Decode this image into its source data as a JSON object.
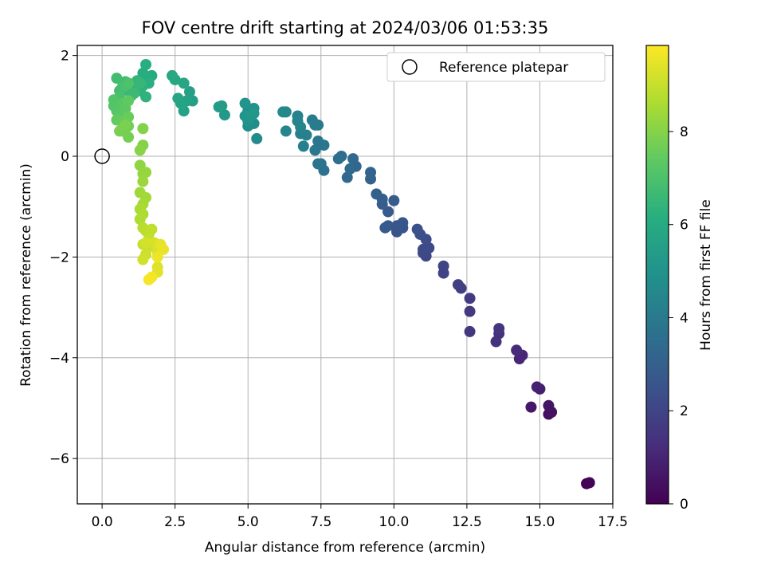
{
  "chart_data": {
    "type": "scatter",
    "title": "FOV centre drift starting at 2024/03/06 01:53:35",
    "xlabel": "Angular distance from reference (arcmin)",
    "ylabel": "Rotation from reference (arcmin)",
    "xlim": [
      -0.85,
      17.5
    ],
    "ylim": [
      -6.9,
      2.2
    ],
    "xticks": [
      "0.0",
      "2.5",
      "5.0",
      "7.5",
      "10.0",
      "12.5",
      "15.0",
      "17.5"
    ],
    "yticks": [
      "−6",
      "−4",
      "−2",
      "0",
      "2"
    ],
    "grid": true,
    "legend": {
      "position": "top-right",
      "entries": [
        "Reference platepar"
      ]
    },
    "reference_point": {
      "x": 0.0,
      "y": 0.0
    },
    "colorbar": {
      "label": "Hours from first FF file",
      "range": [
        0,
        9.85
      ],
      "ticks": [
        "0",
        "2",
        "4",
        "6",
        "8"
      ],
      "colormap": "viridis"
    },
    "series": [
      {
        "points": [
          [
            16.6,
            -6.5,
            0.05
          ],
          [
            16.7,
            -6.48,
            0.1
          ],
          [
            15.3,
            -5.12,
            0.35
          ],
          [
            15.4,
            -5.08,
            0.45
          ],
          [
            15.3,
            -4.95,
            0.55
          ],
          [
            14.7,
            -4.98,
            0.65
          ],
          [
            15.0,
            -4.62,
            0.8
          ],
          [
            14.9,
            -4.58,
            0.9
          ],
          [
            14.3,
            -4.02,
            1.05
          ],
          [
            14.4,
            -3.95,
            1.1
          ],
          [
            14.2,
            -3.85,
            1.2
          ],
          [
            13.6,
            -3.52,
            1.35
          ],
          [
            13.5,
            -3.68,
            1.4
          ],
          [
            13.6,
            -3.42,
            1.45
          ],
          [
            12.6,
            -3.48,
            1.6
          ],
          [
            12.6,
            -3.08,
            1.65
          ],
          [
            12.6,
            -2.82,
            1.7
          ],
          [
            12.3,
            -2.62,
            1.8
          ],
          [
            12.2,
            -2.55,
            1.85
          ],
          [
            11.7,
            -2.32,
            1.95
          ],
          [
            11.7,
            -2.18,
            2.0
          ],
          [
            11.1,
            -1.98,
            2.1
          ],
          [
            11.0,
            -1.92,
            2.15
          ],
          [
            11.0,
            -1.85,
            2.2
          ],
          [
            11.2,
            -1.82,
            2.25
          ],
          [
            11.1,
            -1.65,
            2.3
          ],
          [
            10.9,
            -1.55,
            2.35
          ],
          [
            10.8,
            -1.45,
            2.4
          ],
          [
            10.3,
            -1.42,
            2.5
          ],
          [
            10.1,
            -1.5,
            2.55
          ],
          [
            10.3,
            -1.32,
            2.6
          ],
          [
            10.1,
            -1.38,
            2.62
          ],
          [
            9.8,
            -1.38,
            2.7
          ],
          [
            9.7,
            -1.42,
            2.75
          ],
          [
            9.8,
            -1.1,
            2.8
          ],
          [
            10.0,
            -0.88,
            2.85
          ],
          [
            9.6,
            -0.95,
            2.9
          ],
          [
            9.6,
            -0.85,
            2.95
          ],
          [
            9.4,
            -0.75,
            3.0
          ],
          [
            9.2,
            -0.45,
            3.1
          ],
          [
            9.2,
            -0.32,
            3.15
          ],
          [
            8.7,
            -0.2,
            3.25
          ],
          [
            8.6,
            -0.05,
            3.3
          ],
          [
            8.4,
            -0.42,
            3.35
          ],
          [
            8.5,
            -0.25,
            3.4
          ],
          [
            8.2,
            0.0,
            3.5
          ],
          [
            8.1,
            -0.05,
            3.55
          ],
          [
            7.6,
            -0.28,
            3.65
          ],
          [
            7.5,
            -0.15,
            3.7
          ],
          [
            7.4,
            -0.15,
            3.75
          ],
          [
            7.6,
            0.22,
            3.8
          ],
          [
            7.4,
            0.3,
            3.85
          ],
          [
            7.3,
            0.12,
            3.9
          ],
          [
            7.4,
            0.62,
            4.0
          ],
          [
            7.2,
            0.72,
            4.05
          ],
          [
            7.3,
            0.62,
            4.1
          ],
          [
            6.9,
            0.2,
            4.2
          ],
          [
            6.8,
            0.45,
            4.25
          ],
          [
            7.0,
            0.42,
            4.3
          ],
          [
            6.7,
            0.8,
            4.35
          ],
          [
            6.8,
            0.58,
            4.4
          ],
          [
            6.7,
            0.7,
            4.45
          ],
          [
            6.3,
            0.5,
            4.5
          ],
          [
            6.3,
            0.88,
            4.55
          ],
          [
            6.2,
            0.88,
            4.6
          ],
          [
            5.3,
            0.35,
            4.7
          ],
          [
            5.2,
            0.65,
            4.75
          ],
          [
            5.0,
            0.6,
            4.8
          ],
          [
            5.1,
            0.75,
            4.85
          ],
          [
            5.0,
            0.9,
            4.9
          ],
          [
            5.2,
            0.95,
            4.95
          ],
          [
            5.0,
            0.7,
            5.0
          ],
          [
            4.9,
            1.05,
            5.05
          ],
          [
            4.9,
            0.8,
            5.1
          ],
          [
            5.1,
            0.8,
            5.15
          ],
          [
            5.2,
            0.85,
            5.2
          ],
          [
            4.2,
            0.82,
            5.3
          ],
          [
            4.1,
            1.0,
            5.35
          ],
          [
            4.0,
            0.98,
            5.4
          ],
          [
            3.1,
            1.1,
            5.5
          ],
          [
            3.0,
            1.28,
            5.55
          ],
          [
            2.9,
            1.1,
            5.6
          ],
          [
            2.8,
            0.9,
            5.65
          ],
          [
            2.7,
            1.05,
            5.7
          ],
          [
            2.6,
            1.15,
            5.75
          ],
          [
            2.8,
            1.45,
            5.8
          ],
          [
            2.5,
            1.52,
            5.85
          ],
          [
            2.4,
            1.6,
            5.9
          ],
          [
            1.7,
            1.6,
            6.0
          ],
          [
            1.6,
            1.55,
            6.05
          ],
          [
            1.4,
            1.65,
            6.1
          ],
          [
            1.5,
            1.82,
            6.15
          ],
          [
            1.6,
            1.45,
            6.2
          ],
          [
            1.4,
            1.4,
            6.25
          ],
          [
            1.3,
            1.3,
            6.3
          ],
          [
            1.5,
            1.18,
            6.35
          ],
          [
            1.2,
            1.5,
            6.4
          ],
          [
            1.1,
            1.38,
            6.45
          ],
          [
            1.3,
            1.45,
            6.5
          ],
          [
            1.0,
            1.2,
            6.55
          ],
          [
            0.9,
            1.3,
            6.6
          ],
          [
            1.1,
            1.25,
            6.65
          ],
          [
            0.8,
            1.48,
            6.7
          ],
          [
            0.6,
            1.3,
            6.75
          ],
          [
            0.5,
            1.55,
            6.8
          ],
          [
            0.7,
            1.38,
            6.85
          ],
          [
            0.6,
            1.18,
            6.9
          ],
          [
            0.8,
            1.4,
            6.95
          ],
          [
            0.9,
            1.45,
            7.0
          ],
          [
            0.4,
            1.12,
            7.1
          ],
          [
            0.4,
            1.0,
            7.15
          ],
          [
            0.5,
            0.9,
            7.2
          ],
          [
            0.7,
            1.05,
            7.25
          ],
          [
            0.6,
            0.8,
            7.3
          ],
          [
            0.8,
            0.95,
            7.35
          ],
          [
            0.9,
            1.1,
            7.4
          ],
          [
            0.5,
            0.72,
            7.45
          ],
          [
            0.7,
            0.68,
            7.5
          ],
          [
            0.9,
            0.78,
            7.55
          ],
          [
            0.8,
            0.55,
            7.6
          ],
          [
            0.7,
            0.5,
            7.65
          ],
          [
            0.9,
            0.6,
            7.7
          ],
          [
            0.9,
            0.38,
            7.75
          ],
          [
            0.6,
            0.5,
            7.8
          ],
          [
            0.8,
            0.62,
            7.85
          ],
          [
            1.4,
            0.55,
            7.95
          ],
          [
            1.4,
            0.22,
            8.0
          ],
          [
            1.3,
            0.12,
            8.05
          ],
          [
            1.3,
            -0.18,
            8.15
          ],
          [
            1.4,
            -0.35,
            8.2
          ],
          [
            1.5,
            -0.32,
            8.25
          ],
          [
            1.4,
            -0.5,
            8.3
          ],
          [
            1.3,
            -0.72,
            8.4
          ],
          [
            1.5,
            -0.82,
            8.45
          ],
          [
            1.4,
            -0.95,
            8.5
          ],
          [
            1.3,
            -1.05,
            8.55
          ],
          [
            1.4,
            -1.15,
            8.6
          ],
          [
            1.3,
            -1.25,
            8.65
          ],
          [
            1.4,
            -1.42,
            8.75
          ],
          [
            1.5,
            -1.48,
            8.8
          ],
          [
            1.6,
            -1.55,
            8.85
          ],
          [
            1.7,
            -1.45,
            8.9
          ],
          [
            1.6,
            -1.65,
            8.95
          ],
          [
            1.4,
            -1.75,
            9.0
          ],
          [
            1.6,
            -1.8,
            9.05
          ],
          [
            1.5,
            -1.95,
            9.1
          ],
          [
            1.4,
            -2.05,
            9.15
          ],
          [
            1.5,
            -1.72,
            9.2
          ],
          [
            1.8,
            -1.72,
            9.25
          ],
          [
            1.9,
            -1.9,
            9.3
          ],
          [
            1.9,
            -2.2,
            9.35
          ],
          [
            1.9,
            -2.3,
            9.4
          ],
          [
            2.0,
            -1.75,
            9.5
          ],
          [
            2.1,
            -1.85,
            9.55
          ],
          [
            1.9,
            -2.0,
            9.6
          ],
          [
            1.7,
            -2.4,
            9.7
          ],
          [
            1.6,
            -2.45,
            9.75
          ]
        ]
      }
    ]
  }
}
